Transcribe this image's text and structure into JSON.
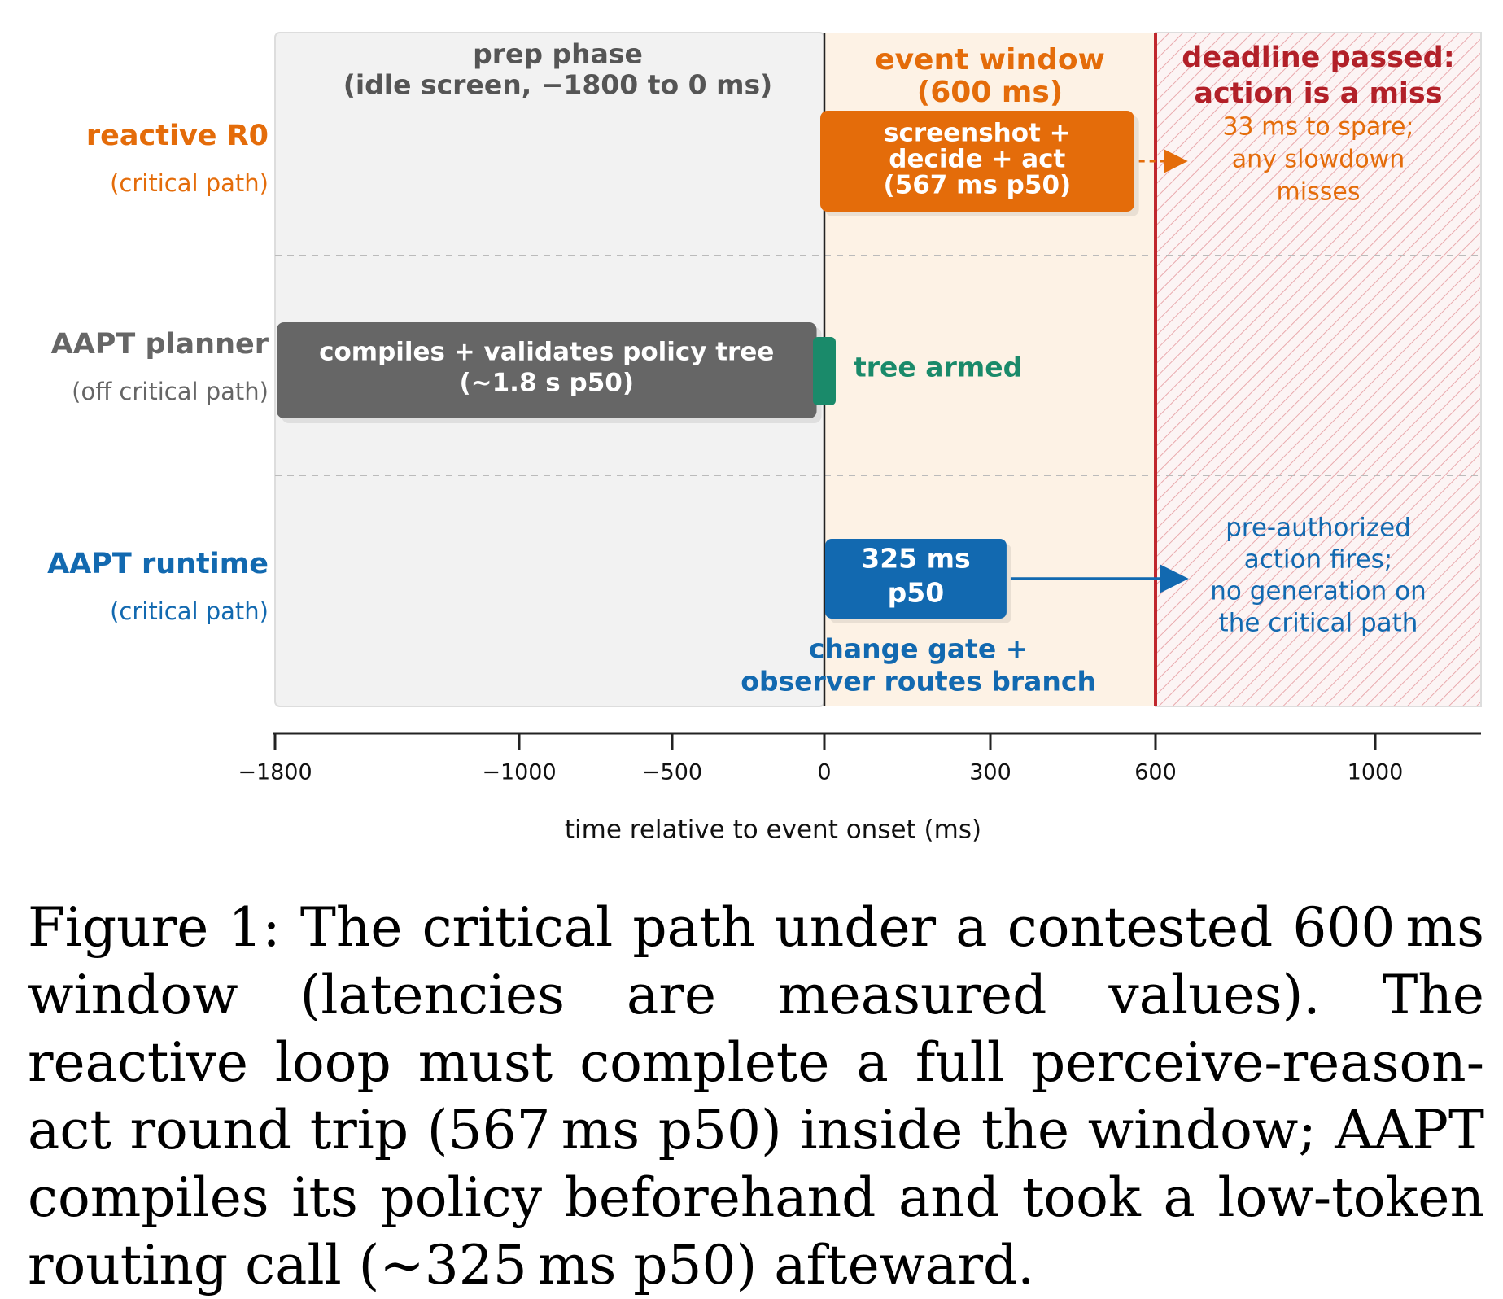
{
  "chart_data": {
    "type": "timeline",
    "xlabel": "time relative to event onset (ms)",
    "x_ticks": [
      -1800,
      -1000,
      -500,
      0,
      300,
      600,
      1000
    ],
    "x_tick_labels": [
      "−1800",
      "−1000",
      "−500",
      "0",
      "300",
      "600",
      "1000"
    ],
    "xlim": [
      -1800,
      1200
    ],
    "regions": [
      {
        "key": "prep",
        "start": -1800,
        "end": 0,
        "label_lines": [
          "prep phase",
          "(idle screen, −1800 to 0 ms)"
        ],
        "color": "#f2f2f2",
        "text_color": "#555555"
      },
      {
        "key": "event",
        "start": 0,
        "end": 600,
        "label_lines": [
          "event window",
          "(600 ms)"
        ],
        "color": "#fdf2e5",
        "text_color": "#e46c0a"
      },
      {
        "key": "deadline",
        "start": 600,
        "end": 1200,
        "label_lines": [
          "deadline passed:",
          "action is a miss"
        ],
        "color": "#c0272d",
        "text_color": "#b22028"
      }
    ],
    "rows": [
      {
        "label": "reactive R0",
        "sublabel": "(critical path)",
        "color": "#e46c0a",
        "bars": [
          {
            "start": 0,
            "end": 567,
            "color": "#e46c0a",
            "label_lines": [
              "screenshot +",
              "decide + act",
              "(567 ms p50)"
            ]
          }
        ],
        "note_lines": [
          "33 ms to spare;",
          "any slowdown",
          "misses"
        ]
      },
      {
        "label": "AAPT planner",
        "sublabel": "(off critical path)",
        "color": "#666666",
        "bars": [
          {
            "start": -1800,
            "end": -20,
            "color": "#666666",
            "label_lines": [
              "compiles + validates policy tree",
              "(~1.8 s p50)"
            ]
          }
        ],
        "marker": {
          "at": 0,
          "color": "#1a8a6a",
          "label": "tree armed"
        }
      },
      {
        "label": "AAPT runtime",
        "sublabel": "(critical path)",
        "color": "#1269b0",
        "bars": [
          {
            "start": 0,
            "end": 325,
            "color": "#1269b0",
            "label_lines": [
              "325 ms",
              "p50"
            ]
          }
        ],
        "below_lines": [
          "change gate +",
          "observer routes branch"
        ],
        "note_lines": [
          "pre-authorized",
          "action fires;",
          "no generation on",
          "the critical path"
        ]
      }
    ]
  },
  "caption": "Figure 1: The critical path under a contested 600 ms window (latencies are measured values). The reactive loop must complete a full perceive-reason-act round trip (567 ms p50) inside the window; AAPT compiles its policy beforehand and took a low-token routing call (∼325 ms p50) afteward."
}
